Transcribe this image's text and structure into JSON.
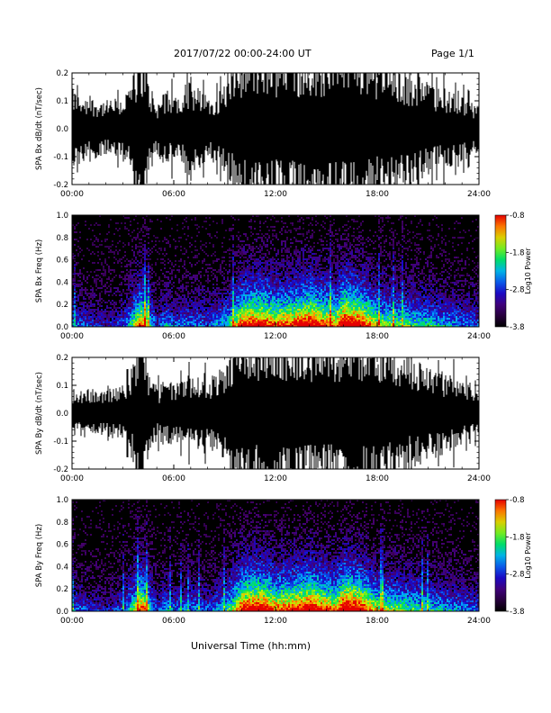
{
  "header": {
    "title": "2017/07/22  00:00-24:00 UT",
    "page": "Page 1/1"
  },
  "x_axis_title": "Universal Time (hh:mm)",
  "chart_data": [
    {
      "type": "line",
      "ylabel": "SPA Bx dB/dt (nT/sec)",
      "xlim": [
        0,
        24
      ],
      "ylim": [
        -0.2,
        0.2
      ],
      "x_ticks": [
        "00:00",
        "06:00",
        "12:00",
        "18:00",
        "24:00"
      ],
      "y_ticks": [
        "-0.2",
        "-0.1",
        "0.0",
        "0.1",
        "0.2"
      ],
      "envelope": {
        "hours": [
          0,
          1,
          2,
          3,
          3.5,
          4,
          4.3,
          4.5,
          5,
          5.5,
          6,
          7,
          8,
          9,
          9.5,
          10,
          11,
          12,
          13,
          14,
          15,
          15.5,
          16,
          17,
          18,
          19,
          20,
          21,
          22,
          23,
          24
        ],
        "amplitude": [
          0.1,
          0.08,
          0.07,
          0.08,
          0.12,
          0.2,
          0.2,
          0.12,
          0.06,
          0.1,
          0.08,
          0.12,
          0.08,
          0.1,
          0.16,
          0.2,
          0.2,
          0.2,
          0.2,
          0.2,
          0.2,
          0.2,
          0.2,
          0.2,
          0.18,
          0.16,
          0.14,
          0.12,
          0.1,
          0.08,
          0.06
        ]
      }
    },
    {
      "type": "heatmap",
      "ylabel": "SPA Bx Freq (Hz)",
      "xlim": [
        0,
        24
      ],
      "ylim": [
        0,
        1.0
      ],
      "x_ticks": [
        "00:00",
        "06:00",
        "12:00",
        "18:00",
        "24:00"
      ],
      "y_ticks": [
        "0.0",
        "0.2",
        "0.4",
        "0.6",
        "0.8",
        "1.0"
      ],
      "colorbar": {
        "label": "Log10 Power",
        "ticks": [
          "-0.8",
          "-1.8",
          "-2.8",
          "-3.8"
        ],
        "range": [
          -3.8,
          -0.8
        ]
      },
      "activity": {
        "hours": [
          0,
          1,
          2,
          3,
          3.5,
          4,
          4.3,
          4.5,
          5,
          5.5,
          6,
          7,
          8,
          9,
          9.5,
          10,
          11,
          12,
          13,
          14,
          15,
          15.5,
          16,
          17,
          18,
          19,
          20,
          21,
          22,
          23,
          24
        ],
        "level": [
          0.35,
          0.25,
          0.2,
          0.3,
          0.5,
          0.8,
          0.7,
          0.5,
          0.25,
          0.4,
          0.3,
          0.35,
          0.3,
          0.45,
          0.6,
          0.8,
          0.85,
          0.75,
          0.8,
          0.9,
          0.75,
          0.7,
          0.95,
          0.85,
          0.6,
          0.55,
          0.5,
          0.45,
          0.4,
          0.35,
          0.3
        ]
      }
    },
    {
      "type": "line",
      "ylabel": "SPA By dB/dt (nT/sec)",
      "xlim": [
        0,
        24
      ],
      "ylim": [
        -0.2,
        0.2
      ],
      "x_ticks": [
        "00:00",
        "06:00",
        "12:00",
        "18:00",
        "24:00"
      ],
      "y_ticks": [
        "-0.2",
        "-0.1",
        "0.0",
        "0.1",
        "0.2"
      ],
      "envelope": {
        "hours": [
          0,
          1,
          2,
          3,
          3.5,
          4,
          4.3,
          4.5,
          5,
          5.5,
          6,
          7,
          8,
          9,
          9.5,
          10,
          11,
          12,
          13,
          14,
          15,
          15.5,
          16,
          17,
          18,
          19,
          20,
          21,
          22,
          23,
          24
        ],
        "amplitude": [
          0.06,
          0.06,
          0.06,
          0.07,
          0.1,
          0.2,
          0.2,
          0.1,
          0.06,
          0.08,
          0.07,
          0.1,
          0.08,
          0.12,
          0.18,
          0.2,
          0.2,
          0.2,
          0.2,
          0.2,
          0.2,
          0.2,
          0.2,
          0.2,
          0.2,
          0.16,
          0.14,
          0.12,
          0.1,
          0.08,
          0.06
        ]
      }
    },
    {
      "type": "heatmap",
      "ylabel": "SPA By Freq (Hz)",
      "xlim": [
        0,
        24
      ],
      "ylim": [
        0,
        1.0
      ],
      "x_ticks": [
        "00:00",
        "06:00",
        "12:00",
        "18:00",
        "24:00"
      ],
      "y_ticks": [
        "0.0",
        "0.2",
        "0.4",
        "0.6",
        "0.8",
        "1.0"
      ],
      "colorbar": {
        "label": "Log10 Power",
        "ticks": [
          "-0.8",
          "-1.8",
          "-2.8",
          "-3.8"
        ],
        "range": [
          -3.8,
          -0.8
        ]
      },
      "activity": {
        "hours": [
          0,
          1,
          2,
          3,
          3.5,
          4,
          4.3,
          4.5,
          5,
          5.5,
          6,
          7,
          8,
          9,
          9.5,
          10,
          11,
          12,
          13,
          14,
          15,
          15.5,
          16,
          17,
          18,
          19,
          20,
          21,
          22,
          23,
          24
        ],
        "level": [
          0.35,
          0.25,
          0.2,
          0.3,
          0.5,
          0.8,
          0.7,
          0.5,
          0.25,
          0.4,
          0.3,
          0.35,
          0.3,
          0.45,
          0.6,
          0.85,
          0.9,
          0.75,
          0.8,
          0.9,
          0.75,
          0.7,
          0.95,
          0.85,
          0.6,
          0.55,
          0.5,
          0.45,
          0.4,
          0.35,
          0.3
        ]
      }
    }
  ]
}
